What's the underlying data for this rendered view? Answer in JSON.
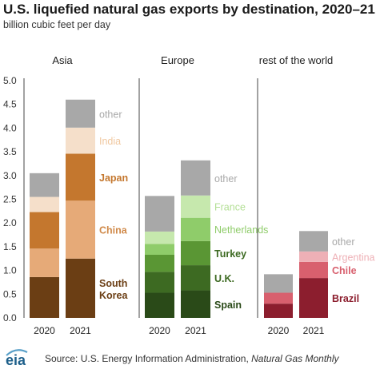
{
  "title": "U.S. liquefied natural gas exports by destination, 2020–21",
  "subtitle": "billion cubic feet per day",
  "footer": {
    "logo_text": "eia",
    "source_prefix": "Source: U.S. Energy Information Administration, ",
    "source_italic": "Natural Gas Monthly"
  },
  "chart_data": {
    "type": "bar",
    "stacked": true,
    "ylim": [
      0,
      5.0
    ],
    "yticks": [
      "0.0",
      "0.5",
      "1.0",
      "1.5",
      "2.0",
      "2.5",
      "3.0",
      "3.5",
      "4.0",
      "4.5",
      "5.0"
    ],
    "grid": false,
    "categories": [
      "2020",
      "2021"
    ],
    "panels": [
      {
        "name": "Asia",
        "series": [
          {
            "name": "South Korea",
            "values": [
              0.86,
              1.25
            ],
            "colors": [
              "#6b3e14",
              "#6b3e14"
            ],
            "label_color": "#6b3e14"
          },
          {
            "name": "China",
            "values": [
              0.6,
              1.22
            ],
            "colors": [
              "#e6aa78",
              "#e6aa78"
            ],
            "label_color": "#d08a4a"
          },
          {
            "name": "Japan",
            "values": [
              0.77,
              0.99
            ],
            "colors": [
              "#c4772e",
              "#c4772e"
            ],
            "label_color": "#c4772e"
          },
          {
            "name": "India",
            "values": [
              0.32,
              0.55
            ],
            "colors": [
              "#f5dfca",
              "#f5dfca"
            ],
            "label_color": "#f0c8a0"
          },
          {
            "name": "other",
            "values": [
              0.5,
              0.59
            ],
            "colors": [
              "#a8a8a8",
              "#a8a8a8"
            ],
            "label_color": "#a8a8a8"
          }
        ]
      },
      {
        "name": "Europe",
        "series": [
          {
            "name": "Spain",
            "values": [
              0.53,
              0.58
            ],
            "colors": [
              "#2a4a18",
              "#2a4a18"
            ],
            "label_color": "#2a4a18"
          },
          {
            "name": "U.K.",
            "values": [
              0.44,
              0.53
            ],
            "colors": [
              "#3d6a22",
              "#3d6a22"
            ],
            "label_color": "#3d6a22"
          },
          {
            "name": "Turkey",
            "values": [
              0.36,
              0.51
            ],
            "colors": [
              "#5a9634",
              "#5a9634"
            ],
            "label_color": "#3d6a22"
          },
          {
            "name": "Netherlands",
            "values": [
              0.23,
              0.49
            ],
            "colors": [
              "#8fcc6a",
              "#8fcc6a"
            ],
            "label_color": "#8fcc6a"
          },
          {
            "name": "France",
            "values": [
              0.26,
              0.47
            ],
            "colors": [
              "#c6e8ad",
              "#c6e8ad"
            ],
            "label_color": "#b3df95"
          },
          {
            "name": "other",
            "values": [
              0.75,
              0.74
            ],
            "colors": [
              "#a8a8a8",
              "#a8a8a8"
            ],
            "label_color": "#a8a8a8"
          }
        ]
      },
      {
        "name": "rest of the world",
        "series": [
          {
            "name": "Brazil",
            "values": [
              0.3,
              0.84
            ],
            "colors": [
              "#8c1e2e",
              "#8c1e2e"
            ],
            "label_color": "#8c1e2e"
          },
          {
            "name": "Chile",
            "values": [
              0.23,
              0.34
            ],
            "colors": [
              "#d8606e",
              "#d8606e"
            ],
            "label_color": "#d8606e"
          },
          {
            "name": "Argentina",
            "values": [
              0.0,
              0.22
            ],
            "colors": [
              "#eeb0b6",
              "#eeb0b6"
            ],
            "label_color": "#eeb0b6"
          },
          {
            "name": "other",
            "values": [
              0.39,
              0.43
            ],
            "colors": [
              "#a8a8a8",
              "#a8a8a8"
            ],
            "label_color": "#a8a8a8"
          }
        ]
      }
    ]
  }
}
